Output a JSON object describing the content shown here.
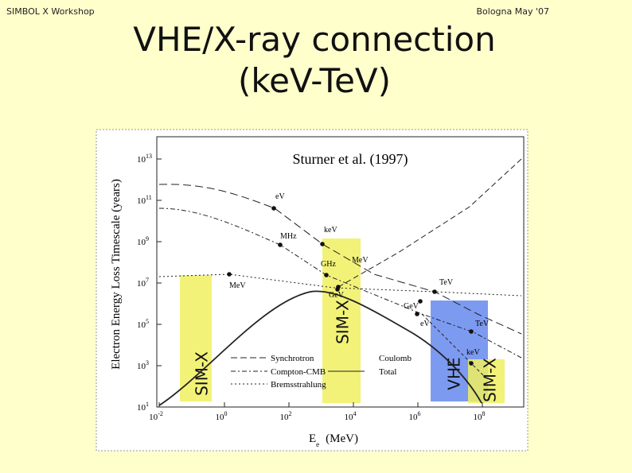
{
  "header": {
    "left": "SIMBOL X Workshop",
    "right": "Bologna May '07",
    "title": [
      "VHE/X-ray connection",
      "(keV-TeV)"
    ]
  },
  "figure": {
    "caption": "Sturner et al. (1997)",
    "y_label": "Electron Energy Loss Timescale (years)",
    "x_label": {
      "main": "E",
      "sub": "e",
      "unit": "(MeV)"
    },
    "x_ticks": [
      {
        "base": "10",
        "exp": "-2"
      },
      {
        "base": "10",
        "exp": "0"
      },
      {
        "base": "10",
        "exp": "2"
      },
      {
        "base": "10",
        "exp": "4"
      },
      {
        "base": "10",
        "exp": "6"
      },
      {
        "base": "10",
        "exp": "8"
      }
    ],
    "y_ticks": [
      {
        "base": "10",
        "exp": "1"
      },
      {
        "base": "10",
        "exp": "3"
      },
      {
        "base": "10",
        "exp": "5"
      },
      {
        "base": "10",
        "exp": "7"
      },
      {
        "base": "10",
        "exp": "9"
      },
      {
        "base": "10",
        "exp": "11"
      },
      {
        "base": "10",
        "exp": "13"
      }
    ],
    "bands": [
      "SIM-X",
      "SIM-X",
      "VHE",
      "SIM-X"
    ],
    "legend": [
      "Synchrotron",
      "Compton-CMB",
      "Bremsstrahlung",
      "Coulomb",
      "Total"
    ],
    "annotations": [
      "eV",
      "MHz",
      "keV",
      "GHz",
      "MeV",
      "GeV",
      "MeV",
      "TeV",
      "GeV",
      "eV",
      "TeV",
      "keV"
    ]
  }
}
